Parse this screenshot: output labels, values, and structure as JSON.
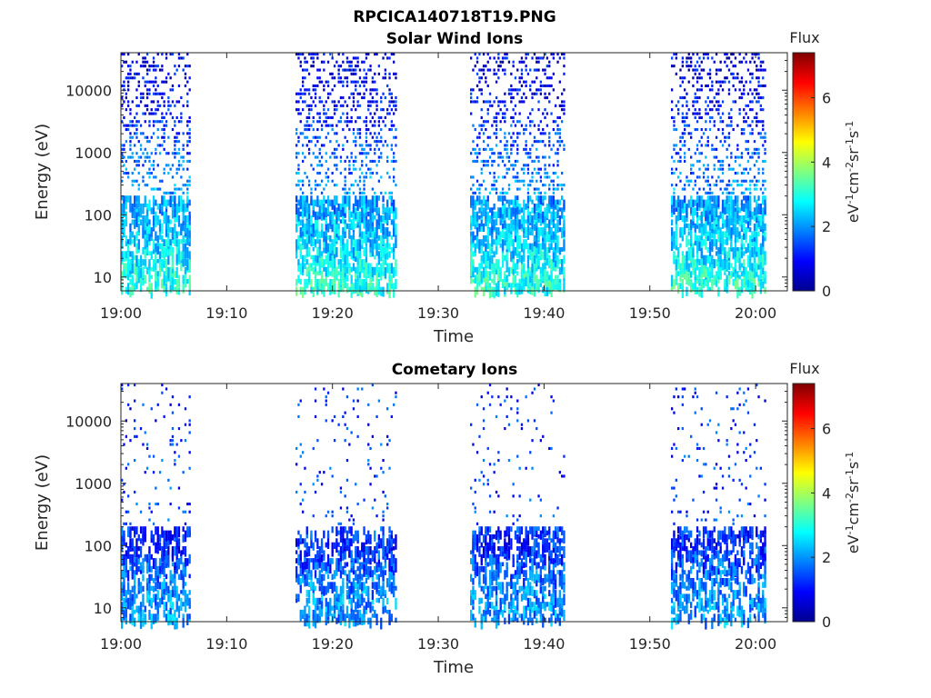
{
  "figure": {
    "title": "RPCICA140718T19.PNG"
  },
  "colors": {
    "colormap": "jet"
  },
  "chart_data": [
    {
      "type": "heatmap",
      "title": "Solar Wind Ions",
      "xlabel": "Time",
      "ylabel": "Energy (eV)",
      "xticks": [
        "19:00",
        "19:10",
        "19:20",
        "19:30",
        "19:40",
        "19:50",
        "20:00"
      ],
      "yticks": [
        "10",
        "100",
        "1000",
        "10000"
      ],
      "yscale": "log",
      "xlim": [
        "19:00",
        "20:03"
      ],
      "ylim": [
        6,
        40000
      ],
      "colorbar": {
        "label": "Flux",
        "unit": "eV-1cm-2sr-1s-1",
        "range": [
          0,
          7.4
        ],
        "ticks": [
          "0",
          "2",
          "4",
          "6"
        ]
      },
      "data_intervals": [
        [
          "19:00",
          "19:06.5"
        ],
        [
          "19:16.5",
          "19:26"
        ],
        [
          "19:33",
          "19:42"
        ],
        [
          "19:52",
          "20:01"
        ]
      ],
      "dominant_flux_by_energy": [
        {
          "energy": 10,
          "flux": 3.0
        },
        {
          "energy": 30,
          "flux": 2.5
        },
        {
          "energy": 100,
          "flux": 2.2
        },
        {
          "energy": 1000,
          "flux": 1.6
        },
        {
          "energy": 10000,
          "flux": 0.8
        }
      ]
    },
    {
      "type": "heatmap",
      "title": "Cometary Ions",
      "xlabel": "Time",
      "ylabel": "Energy (eV)",
      "xticks": [
        "19:00",
        "19:10",
        "19:20",
        "19:30",
        "19:40",
        "19:50",
        "20:00"
      ],
      "yticks": [
        "10",
        "100",
        "1000",
        "10000"
      ],
      "yscale": "log",
      "xlim": [
        "19:00",
        "20:03"
      ],
      "ylim": [
        6,
        40000
      ],
      "colorbar": {
        "label": "Flux",
        "unit": "eV-1cm-2sr-1s-1",
        "range": [
          0,
          7.4
        ],
        "ticks": [
          "0",
          "2",
          "4",
          "6"
        ]
      },
      "data_intervals": [
        [
          "19:00",
          "19:06.5"
        ],
        [
          "19:16.5",
          "19:26"
        ],
        [
          "19:33",
          "19:42"
        ],
        [
          "19:52",
          "20:01"
        ]
      ],
      "dominant_flux_by_energy": [
        {
          "energy": 10,
          "flux": 2.0
        },
        {
          "energy": 30,
          "flux": 1.8
        },
        {
          "energy": 100,
          "flux": 1.2
        },
        {
          "energy": 1000,
          "flux": 1.4
        },
        {
          "energy": 10000,
          "flux": 1.2
        }
      ]
    }
  ]
}
